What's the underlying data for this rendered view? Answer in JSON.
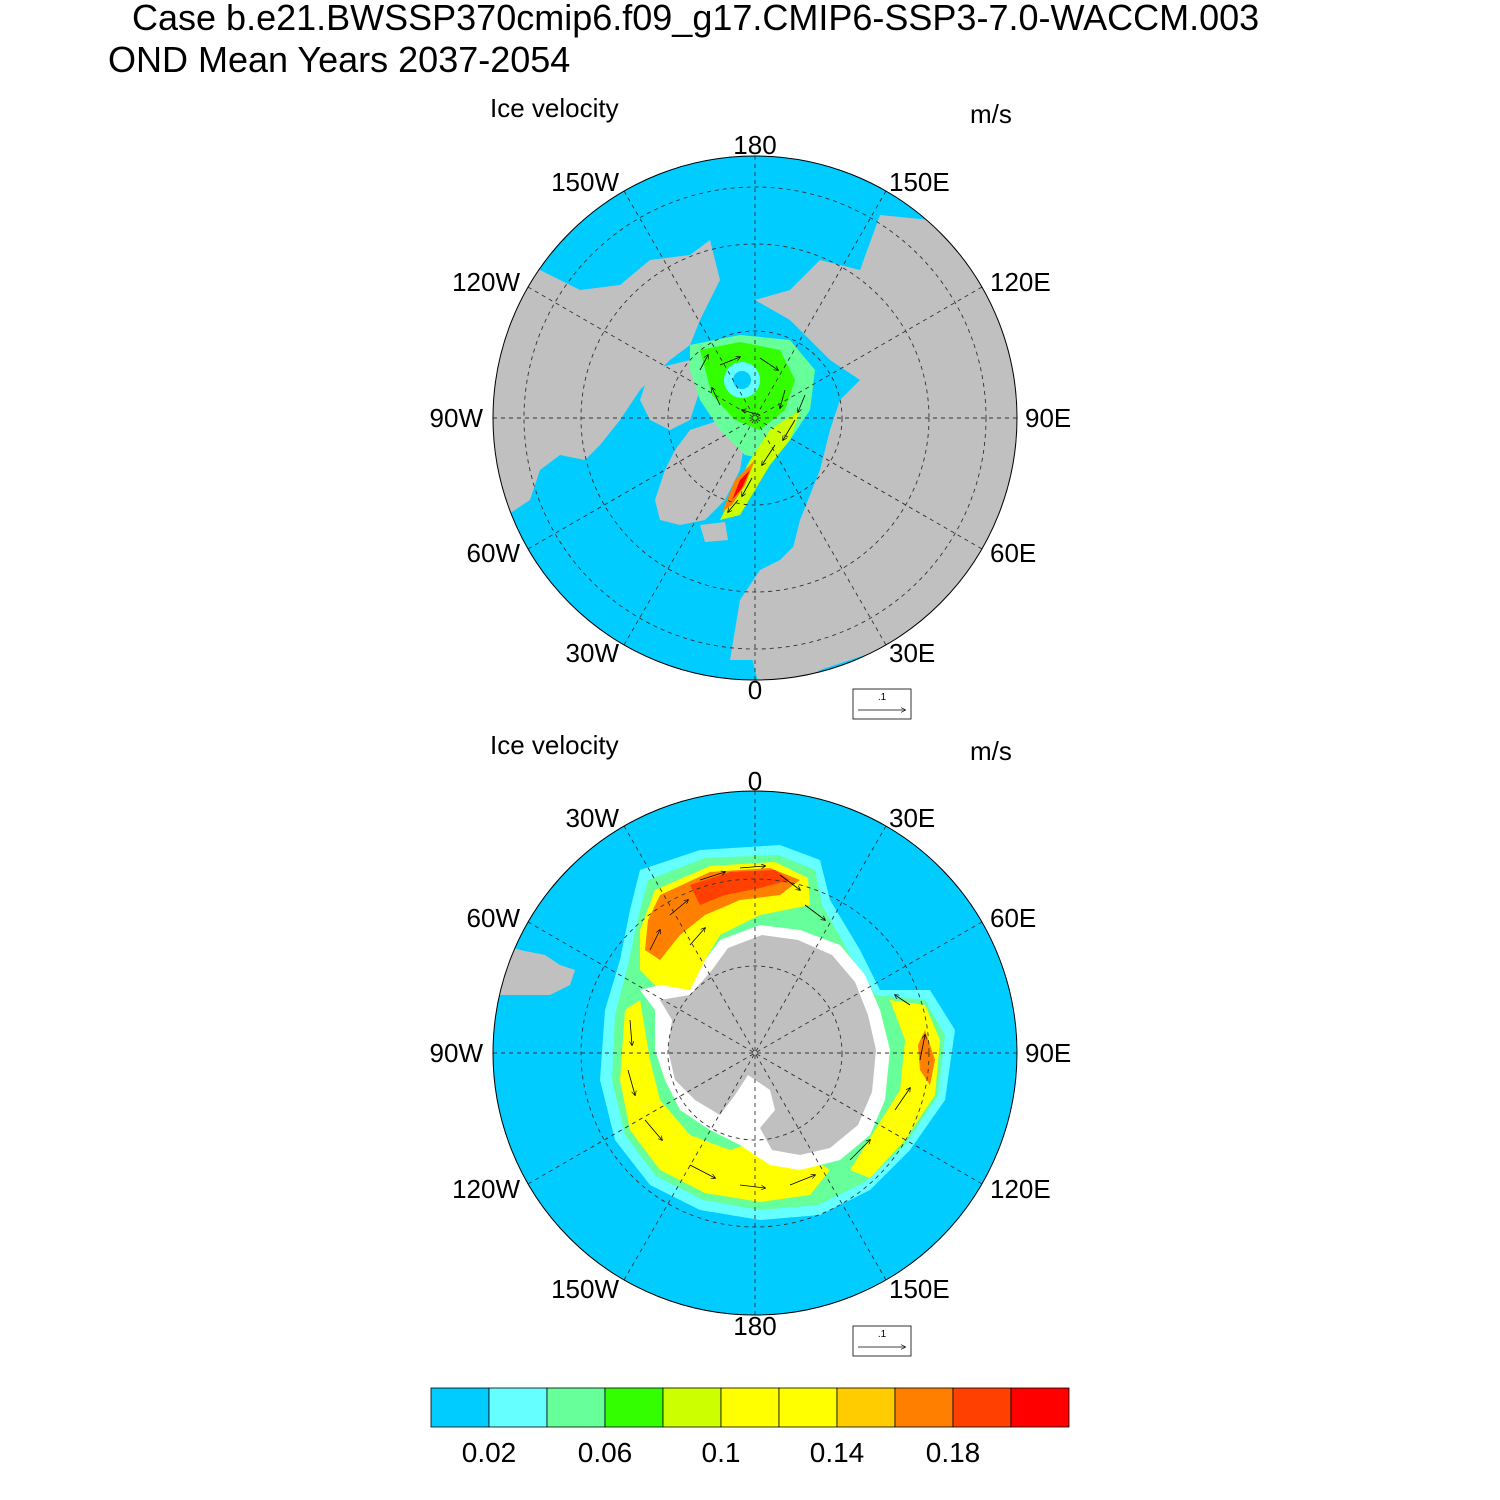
{
  "header": {
    "case_line": "Case b.e21.BWSSP370cmip6.f09_g17.CMIP6-SSP3-7.0-WACCM.003",
    "period_line": "OND Mean   Years 2037-2054"
  },
  "panels": [
    {
      "id": "north",
      "title": "Ice velocity",
      "units": "m/s",
      "lon_labels": {
        "top": "180",
        "bottom": "0",
        "left": "90W",
        "right": "90E",
        "ul1": "150W",
        "ul2": "120W",
        "ur1": "150E",
        "ur2": "120E",
        "ll1": "60W",
        "ll2": "30W",
        "lr1": "60E",
        "lr2": "30E"
      },
      "ref_vector": ".1"
    },
    {
      "id": "south",
      "title": "Ice velocity",
      "units": "m/s",
      "lon_labels": {
        "top": "0",
        "bottom": "180",
        "left": "90W",
        "right": "90E",
        "ul1": "30W",
        "ul2": "60W",
        "ur1": "30E",
        "ur2": "60E",
        "ll1": "120W",
        "ll2": "150W",
        "lr1": "120E",
        "lr2": "150E"
      },
      "ref_vector": ".1"
    }
  ],
  "colorbar": {
    "colors": [
      "#00ccff",
      "#66ffff",
      "#66ff99",
      "#33ff00",
      "#ccff00",
      "#ffff00",
      "#ffff00",
      "#ffcc00",
      "#ff8000",
      "#ff4000",
      "#ff0000"
    ],
    "labels": [
      "0.02",
      "0.06",
      "0.1",
      "0.14",
      "0.18"
    ]
  },
  "map_colors": {
    "ocean": "#00ccff",
    "land": "#c0c0c0",
    "no_data": "#ffffff"
  }
}
